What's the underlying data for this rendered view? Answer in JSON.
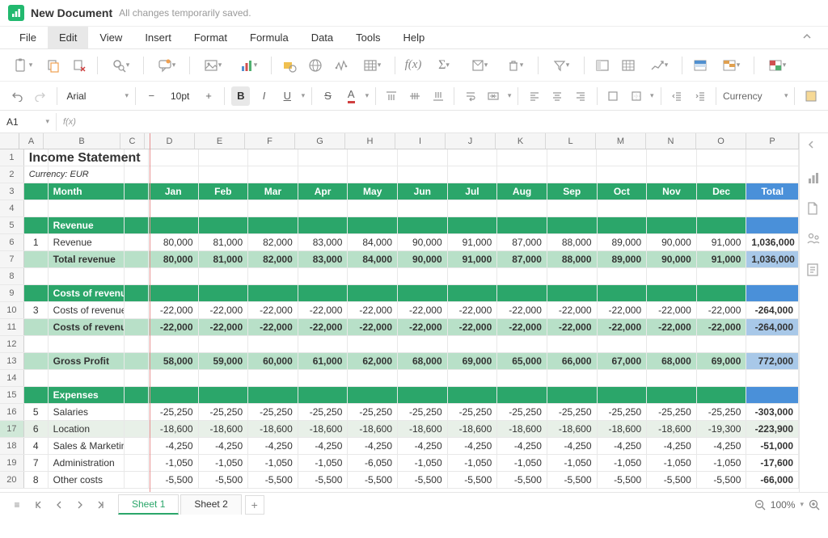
{
  "titlebar": {
    "doc_title": "New Document",
    "save_status": "All changes temporarily saved."
  },
  "menus": [
    "File",
    "Edit",
    "View",
    "Insert",
    "Format",
    "Formula",
    "Data",
    "Tools",
    "Help"
  ],
  "menu_active_index": 1,
  "format": {
    "font": "Arial",
    "size": "10pt",
    "number_format": "Currency"
  },
  "namebox": "A1",
  "fx_label": "f(x)",
  "sheet_tabs": [
    "Sheet 1",
    "Sheet 2"
  ],
  "active_sheet": 0,
  "zoom": "100%",
  "columns": {
    "letters": [
      "A",
      "B",
      "C",
      "D",
      "E",
      "F",
      "G",
      "H",
      "I",
      "J",
      "K",
      "L",
      "M",
      "N",
      "O",
      "P"
    ],
    "widths": [
      30,
      95,
      30,
      62,
      62,
      62,
      62,
      62,
      62,
      62,
      62,
      62,
      62,
      62,
      62,
      65
    ],
    "freeze_after_index": 2
  },
  "colors": {
    "header_green": "#2ba66a",
    "total_blue": "#4a90d9",
    "subtotal_green": "#b8e0c8",
    "subtotal_blue": "#a8c8e8",
    "freeze_line": "#e89090"
  },
  "rows": [
    {
      "n": 1,
      "type": "title",
      "cells": {
        "A": "Income Statement"
      }
    },
    {
      "n": 2,
      "type": "subtitle",
      "cells": {
        "A": "Currency: EUR"
      }
    },
    {
      "n": 3,
      "type": "header",
      "cells": {
        "B": "Month",
        "D": "Jan",
        "E": "Feb",
        "F": "Mar",
        "G": "Apr",
        "H": "May",
        "I": "Jun",
        "J": "Jul",
        "K": "Aug",
        "L": "Sep",
        "M": "Oct",
        "N": "Nov",
        "O": "Dec",
        "P": "Total"
      }
    },
    {
      "n": 4,
      "type": "blank"
    },
    {
      "n": 5,
      "type": "section",
      "cells": {
        "B": "Revenue"
      }
    },
    {
      "n": 6,
      "type": "data",
      "cells": {
        "A": "1",
        "B": "Revenue",
        "D": "80,000",
        "E": "81,000",
        "F": "82,000",
        "G": "83,000",
        "H": "84,000",
        "I": "90,000",
        "J": "91,000",
        "K": "87,000",
        "L": "88,000",
        "M": "89,000",
        "N": "90,000",
        "O": "91,000",
        "P": "1,036,000"
      }
    },
    {
      "n": 7,
      "type": "subtotal",
      "cells": {
        "B": "Total revenue",
        "D": "80,000",
        "E": "81,000",
        "F": "82,000",
        "G": "83,000",
        "H": "84,000",
        "I": "90,000",
        "J": "91,000",
        "K": "87,000",
        "L": "88,000",
        "M": "89,000",
        "N": "90,000",
        "O": "91,000",
        "P": "1,036,000"
      }
    },
    {
      "n": 8,
      "type": "blank"
    },
    {
      "n": 9,
      "type": "section",
      "cells": {
        "B": "Costs of revenue"
      }
    },
    {
      "n": 10,
      "type": "data",
      "cells": {
        "A": "3",
        "B": "Costs of revenue",
        "D": "-22,000",
        "E": "-22,000",
        "F": "-22,000",
        "G": "-22,000",
        "H": "-22,000",
        "I": "-22,000",
        "J": "-22,000",
        "K": "-22,000",
        "L": "-22,000",
        "M": "-22,000",
        "N": "-22,000",
        "O": "-22,000",
        "P": "-264,000"
      }
    },
    {
      "n": 11,
      "type": "subtotal",
      "cells": {
        "B": "Costs of revenue",
        "D": "-22,000",
        "E": "-22,000",
        "F": "-22,000",
        "G": "-22,000",
        "H": "-22,000",
        "I": "-22,000",
        "J": "-22,000",
        "K": "-22,000",
        "L": "-22,000",
        "M": "-22,000",
        "N": "-22,000",
        "O": "-22,000",
        "P": "-264,000"
      }
    },
    {
      "n": 12,
      "type": "blank"
    },
    {
      "n": 13,
      "type": "gross",
      "cells": {
        "B": "Gross Profit",
        "D": "58,000",
        "E": "59,000",
        "F": "60,000",
        "G": "61,000",
        "H": "62,000",
        "I": "68,000",
        "J": "69,000",
        "K": "65,000",
        "L": "66,000",
        "M": "67,000",
        "N": "68,000",
        "O": "69,000",
        "P": "772,000"
      }
    },
    {
      "n": 14,
      "type": "blank"
    },
    {
      "n": 15,
      "type": "section",
      "cells": {
        "B": "Expenses"
      }
    },
    {
      "n": 16,
      "type": "data",
      "cells": {
        "A": "5",
        "B": "Salaries",
        "D": "-25,250",
        "E": "-25,250",
        "F": "-25,250",
        "G": "-25,250",
        "H": "-25,250",
        "I": "-25,250",
        "J": "-25,250",
        "K": "-25,250",
        "L": "-25,250",
        "M": "-25,250",
        "N": "-25,250",
        "O": "-25,250",
        "P": "-303,000"
      }
    },
    {
      "n": 17,
      "type": "data",
      "selected": true,
      "cells": {
        "A": "6",
        "B": "Location",
        "D": "-18,600",
        "E": "-18,600",
        "F": "-18,600",
        "G": "-18,600",
        "H": "-18,600",
        "I": "-18,600",
        "J": "-18,600",
        "K": "-18,600",
        "L": "-18,600",
        "M": "-18,600",
        "N": "-18,600",
        "O": "-19,300",
        "P": "-223,900"
      }
    },
    {
      "n": 18,
      "type": "data",
      "cells": {
        "A": "4",
        "B": "Sales & Marketing",
        "D": "-4,250",
        "E": "-4,250",
        "F": "-4,250",
        "G": "-4,250",
        "H": "-4,250",
        "I": "-4,250",
        "J": "-4,250",
        "K": "-4,250",
        "L": "-4,250",
        "M": "-4,250",
        "N": "-4,250",
        "O": "-4,250",
        "P": "-51,000"
      }
    },
    {
      "n": 19,
      "type": "data",
      "cells": {
        "A": "7",
        "B": "Administration",
        "D": "-1,050",
        "E": "-1,050",
        "F": "-1,050",
        "G": "-1,050",
        "H": "-6,050",
        "I": "-1,050",
        "J": "-1,050",
        "K": "-1,050",
        "L": "-1,050",
        "M": "-1,050",
        "N": "-1,050",
        "O": "-1,050",
        "P": "-17,600"
      }
    },
    {
      "n": 20,
      "type": "data",
      "cells": {
        "A": "8",
        "B": "Other costs",
        "D": "-5,500",
        "E": "-5,500",
        "F": "-5,500",
        "G": "-5,500",
        "H": "-5,500",
        "I": "-5,500",
        "J": "-5,500",
        "K": "-5,500",
        "L": "-5,500",
        "M": "-5,500",
        "N": "-5,500",
        "O": "-5,500",
        "P": "-66,000"
      }
    }
  ]
}
